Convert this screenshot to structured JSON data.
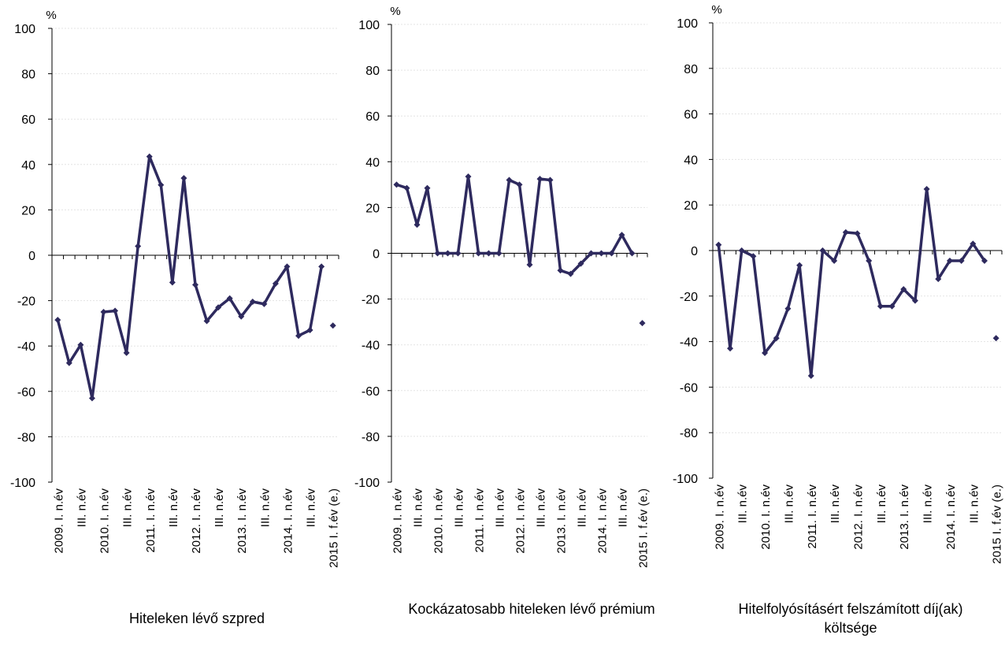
{
  "unit_label": "%",
  "categories": [
    "2009. I. n.év",
    "",
    "III. n.év",
    "",
    "2010. I. n.év",
    "",
    "III. n.év",
    "",
    "2011. I. n.év",
    "",
    "III. n.év",
    "",
    "2012. I. n.év",
    "",
    "III. n.év",
    "",
    "2013. I. n.év",
    "",
    "III. n.év",
    "",
    "2014. I. n.év",
    "",
    "III. n.év",
    "",
    "2015 I. f.év (e.)"
  ],
  "chart_data": [
    {
      "type": "line",
      "title": "Hiteleken lévő szpred",
      "ylabel": "%",
      "ylim": [
        -100,
        100
      ],
      "yticks": [
        100,
        80,
        60,
        40,
        20,
        0,
        -20,
        -40,
        -60,
        -80,
        -100
      ],
      "series": [
        {
          "values": [
            -28.5,
            -47.5,
            -39.5,
            -63,
            -25,
            -24.5,
            -43,
            4,
            43.5,
            31,
            -12,
            34,
            -13,
            -29,
            -23,
            -19,
            -27,
            -20.5,
            -21.5,
            -12.5,
            -5,
            -35.5,
            -33,
            -5,
            -31
          ]
        }
      ],
      "color": "#2e2a5e",
      "grid": true
    },
    {
      "type": "line",
      "title": "Kockázatosabb hiteleken lévő prémium",
      "ylabel": "%",
      "ylim": [
        -100,
        100
      ],
      "yticks": [
        100,
        80,
        60,
        40,
        20,
        0,
        -20,
        -40,
        -60,
        -80,
        -100
      ],
      "series": [
        {
          "values": [
            30,
            28.5,
            12.5,
            28.5,
            0,
            0,
            0,
            33.5,
            0,
            0,
            0,
            32,
            30,
            -5,
            32.5,
            32,
            -7.5,
            -9,
            -4.5,
            0,
            0,
            0,
            8,
            0,
            -30.5
          ]
        }
      ],
      "color": "#2e2a5e",
      "grid": true
    },
    {
      "type": "line",
      "title": "Hitelfolyósításért felszámított díj(ak) költsége",
      "ylabel": "%",
      "ylim": [
        -100,
        100
      ],
      "yticks": [
        100,
        80,
        60,
        40,
        20,
        0,
        -20,
        -40,
        -60,
        -80,
        -100
      ],
      "series": [
        {
          "values": [
            2.5,
            -43,
            0,
            -2.5,
            -45,
            -38.5,
            -25.5,
            -6.5,
            -55,
            0,
            -4.5,
            8,
            7.5,
            -4.5,
            -24.5,
            -24.5,
            -17,
            -22,
            27,
            -12.5,
            -4.5,
            -4.5,
            3,
            -4.5,
            -38.5
          ]
        }
      ],
      "color": "#2e2a5e",
      "grid": true
    }
  ]
}
